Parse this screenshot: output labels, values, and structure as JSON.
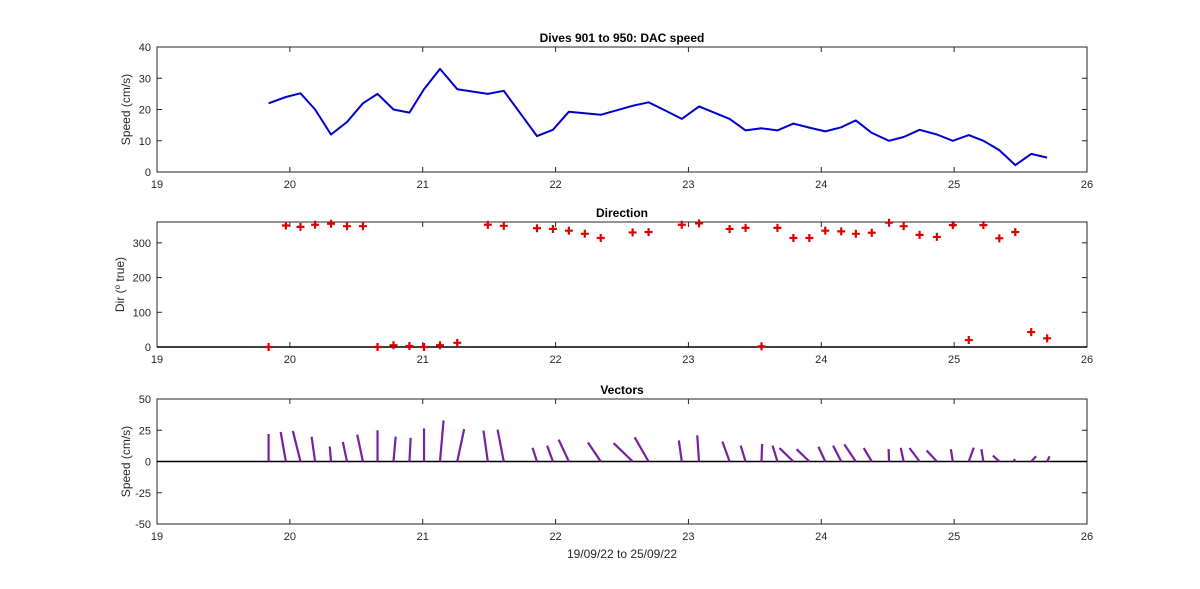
{
  "colors": {
    "speed": "#0000cc",
    "direction": "#dd0000",
    "vectors": "#7a1fa2",
    "axis": "#262626",
    "zero_line": "#000000"
  },
  "chart_data": [
    {
      "type": "line",
      "title": "Dives 901 to 950: DAC speed",
      "xlabel": "",
      "ylabel": "Speed (cm/s)",
      "xlim": [
        19,
        26
      ],
      "ylim": [
        0,
        40
      ],
      "xticks": [
        "19",
        "20",
        "21",
        "22",
        "23",
        "24",
        "25",
        "26"
      ],
      "yticks": [
        "0",
        "10",
        "20",
        "30",
        "40"
      ],
      "grid": false,
      "series": [
        {
          "x": [
            19.84,
            19.97,
            20.08,
            20.19,
            20.31,
            20.43,
            20.55,
            20.66,
            20.78,
            20.9,
            21.01,
            21.13,
            21.26,
            21.49,
            21.61,
            21.86,
            21.98,
            22.1,
            22.34,
            22.58,
            22.7,
            22.82,
            22.95,
            23.08,
            23.31,
            23.43,
            23.55,
            23.67,
            23.79,
            23.91,
            24.03,
            24.15,
            24.26,
            24.38,
            24.51,
            24.62,
            24.74,
            24.87,
            24.99,
            25.11,
            25.22,
            25.34,
            25.46,
            25.58,
            25.7
          ],
          "y": [
            22,
            24,
            25.2,
            20,
            12,
            16,
            22,
            25,
            20,
            19,
            26.5,
            33,
            26.5,
            25,
            26,
            11.5,
            13.5,
            19.3,
            18.3,
            21.2,
            22.3,
            19.8,
            17,
            21,
            17,
            13.3,
            14,
            13.3,
            15.5,
            14.2,
            13,
            14.3,
            16.5,
            12.5,
            10,
            11.2,
            13.5,
            12,
            10,
            11.8,
            10,
            7,
            2.2,
            5.8,
            4.6
          ]
        }
      ]
    },
    {
      "type": "scatter",
      "title": "Direction",
      "xlabel": "",
      "ylabel": "Dir (",
      "ylabel_sup": "o",
      "ylabel_tail": " true)",
      "xlim": [
        19,
        26
      ],
      "ylim": [
        0,
        360
      ],
      "xticks": [
        "19",
        "20",
        "21",
        "22",
        "23",
        "24",
        "25",
        "26"
      ],
      "yticks": [
        "0",
        "100",
        "200",
        "300"
      ],
      "grid": false,
      "marker": "+",
      "series": [
        {
          "x": [
            19.84,
            19.97,
            20.08,
            20.19,
            20.31,
            20.43,
            20.55,
            20.66,
            20.78,
            20.9,
            21.01,
            21.13,
            21.26,
            21.49,
            21.61,
            21.86,
            21.98,
            22.1,
            22.22,
            22.34,
            22.58,
            22.7,
            22.95,
            23.08,
            23.31,
            23.43,
            23.55,
            23.67,
            23.79,
            23.91,
            24.03,
            24.15,
            24.26,
            24.38,
            24.51,
            24.62,
            24.74,
            24.87,
            24.99,
            25.11,
            25.22,
            25.34,
            25.46,
            25.58,
            25.7
          ],
          "y": [
            0,
            350,
            346,
            352,
            355,
            348,
            348,
            0,
            5,
            3,
            0,
            5,
            12,
            352,
            349,
            342,
            340,
            335,
            326,
            314,
            330,
            331,
            352,
            356,
            340,
            343,
            2,
            343,
            314,
            314,
            335,
            333,
            326,
            329,
            358,
            348,
            323,
            317,
            351,
            20,
            351,
            313,
            331,
            43,
            25
          ]
        }
      ]
    },
    {
      "type": "vector",
      "title": "Vectors",
      "xlabel": "19/09/22 to 25/09/22",
      "ylabel": "Speed (cm/s)",
      "xlim": [
        19,
        26
      ],
      "ylim": [
        -50,
        50
      ],
      "xticks": [
        "19",
        "20",
        "21",
        "22",
        "23",
        "24",
        "25",
        "26"
      ],
      "yticks": [
        "-50",
        "-25",
        "0",
        "25",
        "50"
      ],
      "grid": false,
      "series": [
        {
          "x": [
            19.84,
            19.97,
            20.08,
            20.19,
            20.31,
            20.43,
            20.55,
            20.66,
            20.78,
            20.9,
            21.01,
            21.13,
            21.26,
            21.49,
            21.61,
            21.86,
            21.98,
            22.1,
            22.34,
            22.58,
            22.7,
            22.95,
            23.08,
            23.31,
            23.43,
            23.55,
            23.67,
            23.79,
            23.91,
            24.03,
            24.15,
            24.26,
            24.38,
            24.51,
            24.62,
            24.74,
            24.87,
            24.99,
            25.11,
            25.22,
            25.34,
            25.46,
            25.58,
            25.7
          ],
          "speed": [
            22,
            24,
            25.2,
            20,
            12,
            16,
            22,
            25,
            20,
            19,
            26.5,
            33,
            26.5,
            25,
            26,
            11.5,
            13.5,
            19.3,
            18.3,
            21.2,
            22.3,
            17,
            21,
            17,
            13.3,
            14,
            13.3,
            15.5,
            14.2,
            13,
            14.3,
            16.5,
            12.5,
            10,
            11.2,
            13.5,
            12,
            10,
            11.8,
            10,
            7,
            2.2,
            5.8,
            4.6
          ],
          "direction": [
            0,
            350,
            346,
            352,
            355,
            348,
            348,
            0,
            5,
            3,
            0,
            5,
            12,
            352,
            349,
            342,
            340,
            335,
            326,
            314,
            330,
            352,
            356,
            340,
            343,
            2,
            343,
            314,
            314,
            335,
            333,
            326,
            329,
            358,
            348,
            323,
            317,
            351,
            20,
            351,
            313,
            331,
            43,
            25
          ]
        }
      ]
    }
  ]
}
